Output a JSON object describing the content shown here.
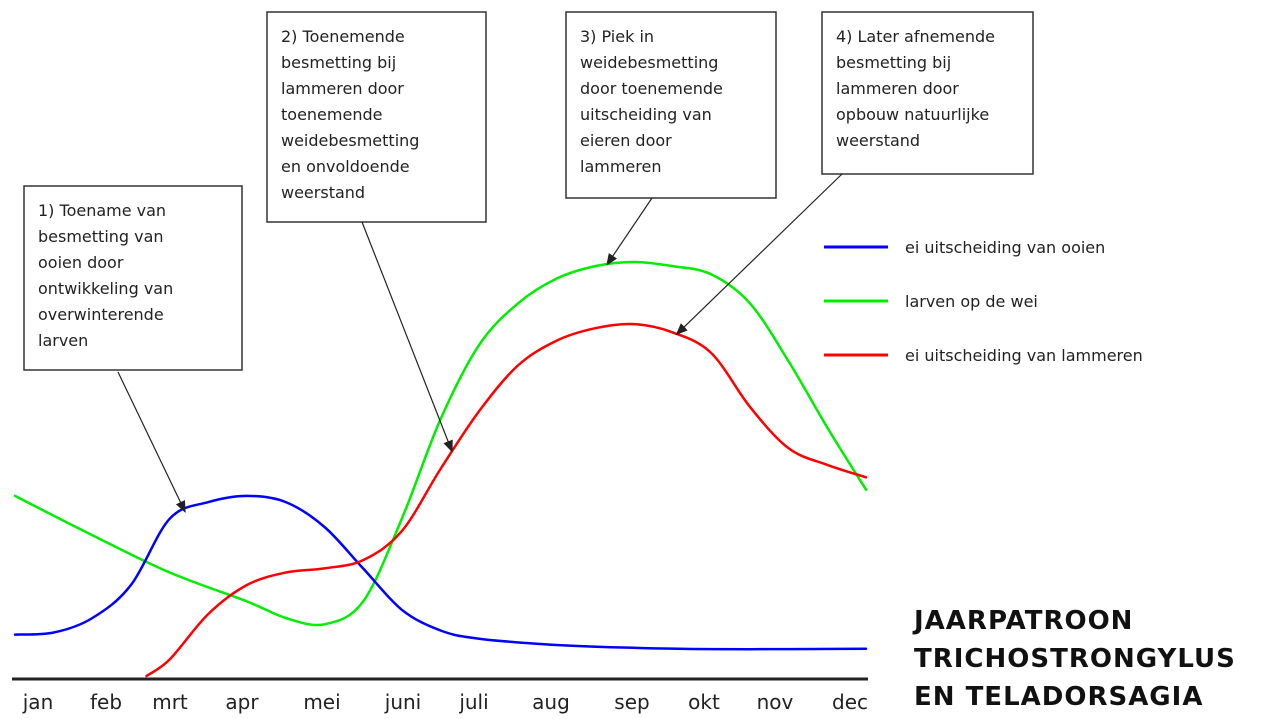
{
  "chart_data": {
    "type": "line",
    "title_lines": [
      "JAARPATROON",
      "TRICHOSTRONGYLUS",
      "EN TELADORSAGIA"
    ],
    "categories": [
      "jan",
      "feb",
      "mrt",
      "apr",
      "mei",
      "juni",
      "juli",
      "aug",
      "sep",
      "okt",
      "nov",
      "dec"
    ],
    "ylim": [
      0,
      100
    ],
    "grid": false,
    "yaxis_visible": false,
    "legend_placement": "right",
    "series": [
      {
        "name": "ei uitscheiding van ooien",
        "color": "#0000ff",
        "points": [
          [
            0,
            10
          ],
          [
            0.5,
            10.5
          ],
          [
            1,
            14
          ],
          [
            1.5,
            22
          ],
          [
            2,
            38
          ],
          [
            2.5,
            42
          ],
          [
            3,
            43.5
          ],
          [
            3.5,
            42
          ],
          [
            4,
            36
          ],
          [
            4.5,
            26
          ],
          [
            5,
            16
          ],
          [
            5.5,
            11
          ],
          [
            6,
            9
          ],
          [
            7,
            7.5
          ],
          [
            8,
            6.8
          ],
          [
            9,
            6.5
          ],
          [
            10,
            6.5
          ],
          [
            11,
            6.6
          ]
        ]
      },
      {
        "name": "larven op de wei",
        "color": "#00ee00",
        "points": [
          [
            0,
            43.5
          ],
          [
            1,
            34
          ],
          [
            2,
            25
          ],
          [
            3,
            18
          ],
          [
            3.5,
            14
          ],
          [
            4,
            12.5
          ],
          [
            4.5,
            18
          ],
          [
            5,
            38
          ],
          [
            5.5,
            62
          ],
          [
            6,
            80
          ],
          [
            6.5,
            90
          ],
          [
            7,
            96
          ],
          [
            7.5,
            99
          ],
          [
            8,
            100
          ],
          [
            8.5,
            99
          ],
          [
            9,
            97
          ],
          [
            9.5,
            90
          ],
          [
            10,
            76
          ],
          [
            10.5,
            60
          ],
          [
            11,
            45
          ]
        ]
      },
      {
        "name": "ei uitscheiding van lammeren",
        "color": "#ff0000",
        "points": [
          [
            1.7,
            0
          ],
          [
            2,
            4
          ],
          [
            2.5,
            15
          ],
          [
            3,
            22
          ],
          [
            3.5,
            25
          ],
          [
            4,
            26
          ],
          [
            4.5,
            28
          ],
          [
            5,
            35
          ],
          [
            5.5,
            50
          ],
          [
            6,
            64
          ],
          [
            6.5,
            75
          ],
          [
            7,
            81
          ],
          [
            7.5,
            84
          ],
          [
            8,
            85
          ],
          [
            8.5,
            83
          ],
          [
            9,
            78
          ],
          [
            9.5,
            65
          ],
          [
            10,
            55
          ],
          [
            10.5,
            51
          ],
          [
            11,
            48
          ]
        ]
      }
    ],
    "annotations": [
      {
        "text_lines": [
          "1) Toename van",
          "besmetting van",
          "ooien door",
          "ontwikkeling van",
          "overwinterende",
          "larven"
        ],
        "points_to": "ei uitscheiding van ooien"
      },
      {
        "text_lines": [
          "2) Toenemende",
          "besmetting bij",
          "lammeren door",
          "toenemende",
          "weidebesmetting",
          "en onvoldoende",
          "weerstand"
        ],
        "points_to": "ei uitscheiding van lammeren"
      },
      {
        "text_lines": [
          "3) Piek in",
          "weidebesmetting",
          "door toenemende",
          "uitscheiding van",
          "eieren door",
          "lammeren"
        ],
        "points_to": "larven op de wei"
      },
      {
        "text_lines": [
          "4) Later afnemende",
          "besmetting bij",
          "lammeren door",
          "opbouw natuurlijke",
          "weerstand"
        ],
        "points_to": "ei uitscheiding van lammeren"
      }
    ]
  }
}
